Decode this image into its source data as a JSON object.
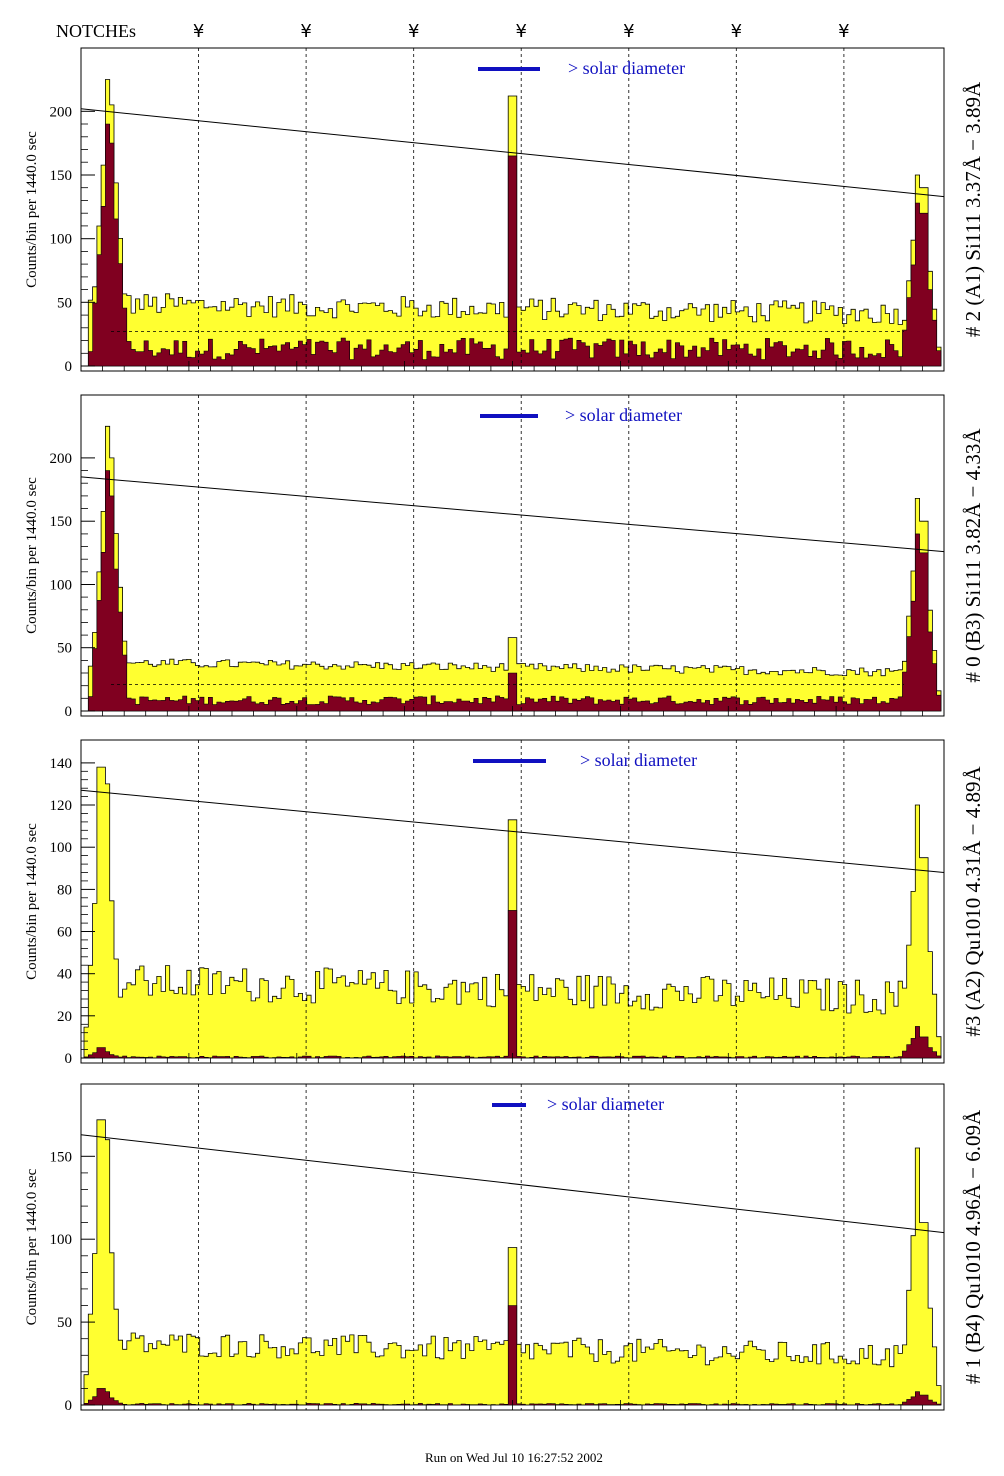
{
  "notches": {
    "label": "NOTCHEs",
    "symbol": "¥",
    "positions": [
      0.125,
      0.25,
      0.375,
      0.5,
      0.625,
      0.75,
      0.875
    ]
  },
  "footer": "Run on Wed Jul 10 16:27:52 2002",
  "colors": {
    "fill_total": "#ffff30",
    "fill_flagged": "#800020",
    "legend_bar": "#1010c0",
    "legend_text": "#1010c0"
  },
  "chart_data": [
    {
      "type": "histogram",
      "right_label": "# 2 (A1) Si111  3.37Å − 3.89Å",
      "ylabel": "Counts/bin per   1440.0 sec",
      "legend": "> solar diameter",
      "yticks": [
        0,
        50,
        100,
        150,
        200
      ],
      "ylim": [
        0,
        245
      ],
      "xlim": [
        0,
        1
      ],
      "trend_line": [
        [
          0.0,
          202
        ],
        [
          1.0,
          133
        ]
      ],
      "dashed_level": 27,
      "peaks": [
        {
          "x": 0.026,
          "total": 225,
          "flagged": 190
        },
        {
          "x": 0.034,
          "total": 205,
          "flagged": 175
        },
        {
          "x": 0.5,
          "total": 212,
          "flagged": 165
        },
        {
          "x": 0.972,
          "total": 150,
          "flagged": 128
        },
        {
          "x": 0.98,
          "total": 140,
          "flagged": 120
        }
      ],
      "background_total": [
        40,
        58
      ],
      "background_flagged": [
        5,
        22
      ]
    },
    {
      "type": "histogram",
      "right_label": "# 0 (B3) Si111  3.82Å − 4.33Å",
      "ylabel": "Counts/bin per   1440.0 sec",
      "legend": "> solar diameter",
      "yticks": [
        0,
        50,
        100,
        150,
        200
      ],
      "ylim": [
        0,
        245
      ],
      "xlim": [
        0,
        1
      ],
      "trend_line": [
        [
          0.0,
          185
        ],
        [
          1.0,
          126
        ]
      ],
      "dashed_level": 21,
      "peaks": [
        {
          "x": 0.026,
          "total": 225,
          "flagged": 190
        },
        {
          "x": 0.034,
          "total": 200,
          "flagged": 170
        },
        {
          "x": 0.5,
          "total": 58,
          "flagged": 30
        },
        {
          "x": 0.972,
          "total": 168,
          "flagged": 140
        },
        {
          "x": 0.98,
          "total": 150,
          "flagged": 125
        }
      ],
      "background_total": [
        35,
        42
      ],
      "background_flagged": [
        5,
        12
      ]
    },
    {
      "type": "histogram",
      "right_label": "#3 (A2) Qu1010  4.31Å − 4.89Å",
      "ylabel": "Counts/bin per   1440.0 sec",
      "legend": "> solar diameter",
      "yticks": [
        0,
        20,
        40,
        60,
        80,
        100,
        120,
        140
      ],
      "ylim": [
        0,
        148
      ],
      "xlim": [
        0,
        1
      ],
      "trend_line": [
        [
          0.0,
          127
        ],
        [
          1.0,
          88
        ]
      ],
      "dashed_level": null,
      "peaks": [
        {
          "x": 0.02,
          "total": 138,
          "flagged": 5
        },
        {
          "x": 0.026,
          "total": 130,
          "flagged": 3
        },
        {
          "x": 0.5,
          "total": 113,
          "flagged": 70
        },
        {
          "x": 0.972,
          "total": 120,
          "flagged": 15
        },
        {
          "x": 0.98,
          "total": 95,
          "flagged": 10
        }
      ],
      "background_total": [
        28,
        45
      ],
      "background_flagged": [
        0,
        1
      ]
    },
    {
      "type": "histogram",
      "right_label": "# 1 (B4) Qu1010 4.96Å − 6.09Å",
      "ylabel": "Counts/bin per   1440.0 sec",
      "legend": "> solar diameter",
      "yticks": [
        0,
        50,
        100,
        150
      ],
      "ylim": [
        0,
        190
      ],
      "xlim": [
        0,
        1
      ],
      "trend_line": [
        [
          0.0,
          163
        ],
        [
          1.0,
          104
        ]
      ],
      "dashed_level": null,
      "peaks": [
        {
          "x": 0.02,
          "total": 172,
          "flagged": 10
        },
        {
          "x": 0.026,
          "total": 160,
          "flagged": 8
        },
        {
          "x": 0.5,
          "total": 95,
          "flagged": 60
        },
        {
          "x": 0.972,
          "total": 155,
          "flagged": 8
        },
        {
          "x": 0.98,
          "total": 110,
          "flagged": 6
        }
      ],
      "background_total": [
        30,
        45
      ],
      "background_flagged": [
        0,
        1
      ]
    }
  ]
}
